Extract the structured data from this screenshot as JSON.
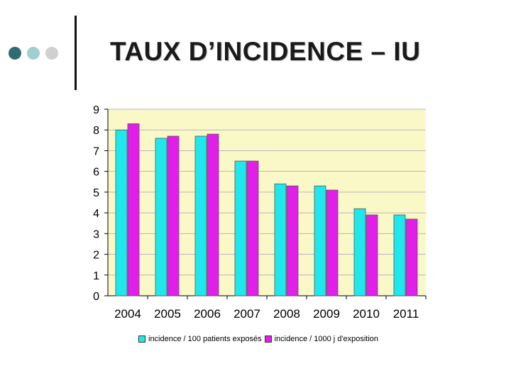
{
  "slide": {
    "title": "TAUX D’INCIDENCE – IU",
    "decor_dot_colors": [
      "#2f6b72",
      "#9ecfd3",
      "#d0d0d0"
    ]
  },
  "colors": {
    "plot_background": "#fbf8c8",
    "gridline": "#b8b8b8",
    "series": [
      "#1ee8ee",
      "#e21fe8"
    ]
  },
  "chart_data": {
    "type": "bar",
    "categories": [
      "2004",
      "2005",
      "2006",
      "2007",
      "2008",
      "2009",
      "2010",
      "2011"
    ],
    "series": [
      {
        "name": "incidence / 100 patients exposés",
        "values": [
          8.0,
          7.6,
          7.7,
          6.5,
          5.4,
          5.3,
          4.2,
          3.9
        ]
      },
      {
        "name": "incidence / 1000 j d'exposition",
        "values": [
          8.3,
          7.7,
          7.8,
          6.5,
          5.3,
          5.1,
          3.9,
          3.7
        ]
      }
    ],
    "yticks": [
      "0",
      "1",
      "2",
      "3",
      "4",
      "5",
      "6",
      "7",
      "8",
      "9"
    ],
    "ylim": [
      0,
      9
    ],
    "grid": true,
    "legend_position": "bottom"
  }
}
